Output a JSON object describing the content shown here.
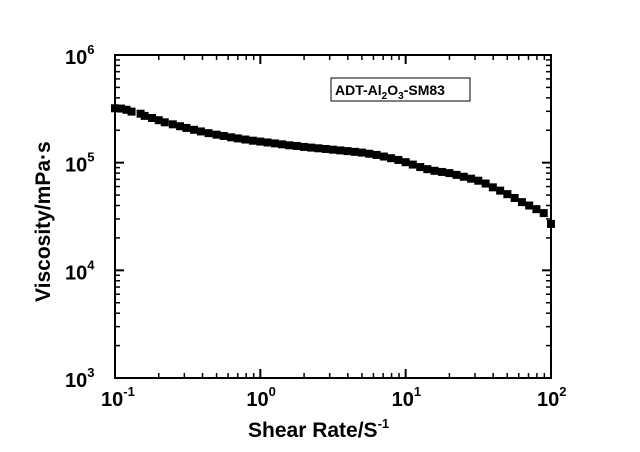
{
  "chart_data": {
    "type": "scatter",
    "x_scale": "log",
    "y_scale": "log",
    "xlim": [
      0.1,
      100
    ],
    "ylim": [
      1000,
      1000000
    ],
    "xlabel": "Shear Rate/S",
    "xlabel_superscript": "-1",
    "ylabel": "Viscosity/mPa·s",
    "x_ticks": [
      {
        "base": "10",
        "exp": "-1"
      },
      {
        "base": "10",
        "exp": "0"
      },
      {
        "base": "10",
        "exp": "1"
      },
      {
        "base": "10",
        "exp": "2"
      }
    ],
    "y_ticks": [
      {
        "base": "10",
        "exp": "3"
      },
      {
        "base": "10",
        "exp": "4"
      },
      {
        "base": "10",
        "exp": "5"
      },
      {
        "base": "10",
        "exp": "6"
      }
    ],
    "legend": {
      "placement": "top-right",
      "parts": [
        {
          "text": "ADT-Al",
          "shift": "none"
        },
        {
          "text": "2",
          "shift": "sub"
        },
        {
          "text": "O",
          "shift": "none"
        },
        {
          "text": "3",
          "shift": "sub"
        },
        {
          "text": "-SM83",
          "shift": "none"
        }
      ]
    },
    "marker": "square",
    "marker_color": "#000000",
    "series": [
      {
        "x": [
          0.1,
          0.11,
          0.12,
          0.13,
          0.15,
          0.16,
          0.18,
          0.2,
          0.22,
          0.25,
          0.28,
          0.31,
          0.35,
          0.39,
          0.44,
          0.5,
          0.56,
          0.63,
          0.7,
          0.79,
          0.89,
          1.0,
          1.12,
          1.26,
          1.41,
          1.58,
          1.78,
          2.0,
          2.24,
          2.51,
          2.82,
          3.16,
          3.55,
          3.98,
          4.47,
          5.01,
          5.62,
          6.31,
          7.08,
          7.94,
          8.91,
          10.0,
          11.2,
          12.6,
          14.1,
          15.8,
          17.8,
          20.0,
          22.4,
          25.1,
          28.2,
          31.6,
          35.5,
          39.8,
          44.7,
          50.1,
          56.2,
          63.1,
          70.8,
          79.4,
          89.1,
          100
        ],
        "y": [
          320000,
          318000,
          310000,
          298000,
          285000,
          272000,
          260000,
          248000,
          237000,
          227000,
          218000,
          210000,
          202000,
          195000,
          188000,
          182000,
          177000,
          172000,
          168000,
          164000,
          160000,
          157000,
          154000,
          151000,
          148000,
          145000,
          143000,
          140000,
          138000,
          136000,
          134000,
          132000,
          130000,
          128000,
          126000,
          124000,
          121000,
          118000,
          114000,
          110000,
          106000,
          101000,
          96000,
          91000,
          87000,
          84000,
          82000,
          80000,
          77000,
          74000,
          71000,
          68000,
          64000,
          59000,
          55000,
          51000,
          47000,
          43000,
          40000,
          37000,
          34000,
          27000
        ]
      }
    ]
  }
}
